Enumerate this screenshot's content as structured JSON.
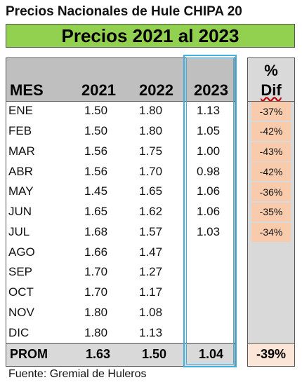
{
  "title": "Precios Nacionales de Hule CHIPA 20",
  "banner": "Precios 2021 al 2023",
  "headers": {
    "mes": "MES",
    "y2021": "2021",
    "y2022": "2022",
    "y2023": "2023",
    "pct": "%",
    "dif": "Dif"
  },
  "rows": [
    {
      "mes": "ENE",
      "y2021": "1.50",
      "y2022": "1.80",
      "y2023": "1.13",
      "dif": "-37%"
    },
    {
      "mes": "FEB",
      "y2021": "1.50",
      "y2022": "1.80",
      "y2023": "1.05",
      "dif": "-42%"
    },
    {
      "mes": "MAR",
      "y2021": "1.56",
      "y2022": "1.75",
      "y2023": "1.00",
      "dif": "-43%"
    },
    {
      "mes": "ABR",
      "y2021": "1.56",
      "y2022": "1.70",
      "y2023": "0.98",
      "dif": "-42%"
    },
    {
      "mes": "MAY",
      "y2021": "1.45",
      "y2022": "1.65",
      "y2023": "1.06",
      "dif": "-36%"
    },
    {
      "mes": "JUN",
      "y2021": "1.65",
      "y2022": "1.62",
      "y2023": "1.06",
      "dif": "-35%"
    },
    {
      "mes": "JUL",
      "y2021": "1.68",
      "y2022": "1.57",
      "y2023": "1.03",
      "dif": "-34%"
    },
    {
      "mes": "AGO",
      "y2021": "1.66",
      "y2022": "1.47",
      "y2023": "",
      "dif": ""
    },
    {
      "mes": "SEP",
      "y2021": "1.70",
      "y2022": "1.27",
      "y2023": "",
      "dif": ""
    },
    {
      "mes": "OCT",
      "y2021": "1.70",
      "y2022": "1.17",
      "y2023": "",
      "dif": ""
    },
    {
      "mes": "NOV",
      "y2021": "1.80",
      "y2022": "1.08",
      "y2023": "",
      "dif": ""
    },
    {
      "mes": "DIC",
      "y2021": "1.80",
      "y2022": "1.13",
      "y2023": "",
      "dif": ""
    }
  ],
  "footer": {
    "mes": "PROM",
    "y2021": "1.63",
    "y2022": "1.50",
    "y2023": "1.04",
    "dif": "-39%"
  },
  "source": "Fuente: Gremial de Huleros",
  "colors": {
    "banner": "#92d050",
    "dif_cell": "#f8cbad",
    "highlight": "#3fb0e0"
  }
}
